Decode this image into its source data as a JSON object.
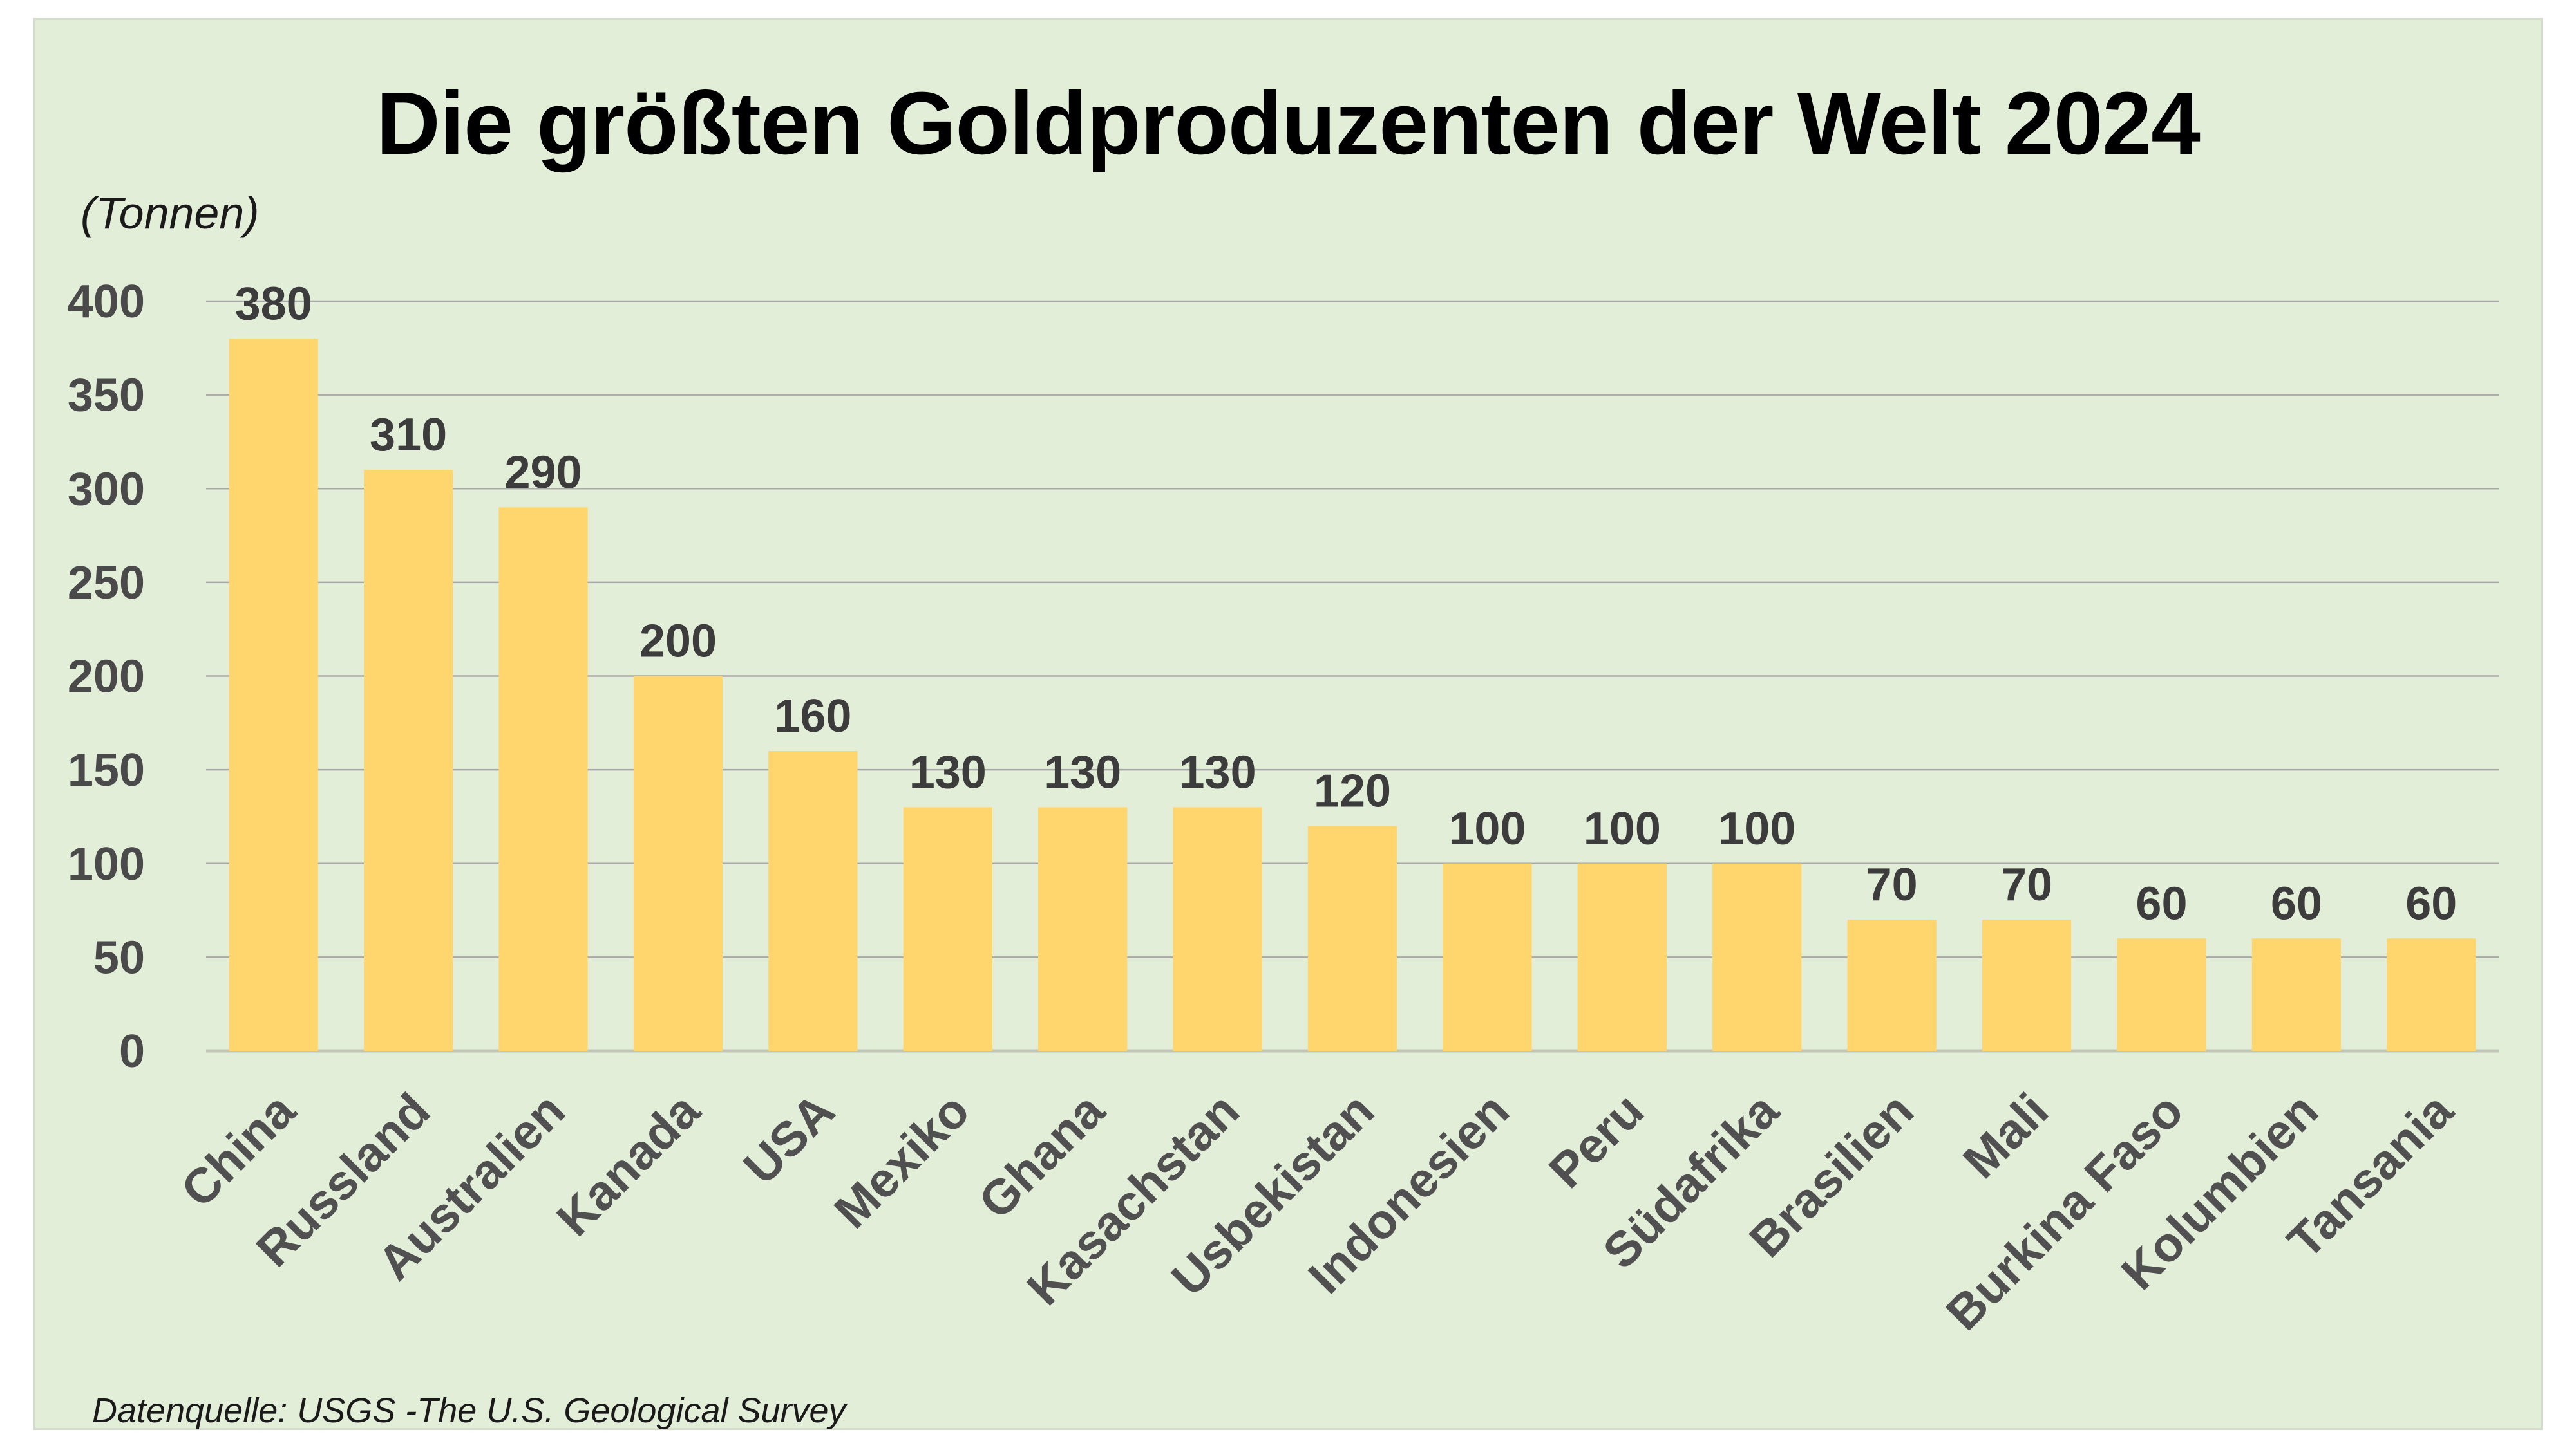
{
  "chart_data": {
    "type": "bar",
    "title": "Die größten Goldproduzenten der Welt 2024",
    "ylabel": "(Tonnen)",
    "source": "Datenquelle: USGS -The U.S. Geological Survey",
    "categories": [
      "China",
      "Russland",
      "Australien",
      "Kanada",
      "USA",
      "Mexiko",
      "Ghana",
      "Kasachstan",
      "Usbekistan",
      "Indonesien",
      "Peru",
      "Südafrika",
      "Brasilien",
      "Mali",
      "Burkina Faso",
      "Kolumbien",
      "Tansania"
    ],
    "values": [
      380,
      310,
      290,
      200,
      160,
      130,
      130,
      130,
      120,
      100,
      100,
      100,
      70,
      70,
      60,
      60,
      60
    ],
    "yticks": [
      0,
      50,
      100,
      150,
      200,
      250,
      300,
      350,
      400
    ],
    "ylim": [
      0,
      400
    ],
    "grid": true,
    "legend": "none",
    "data_labels": true,
    "bar_color": "#fed66d",
    "background_color": "#e3eed9"
  }
}
